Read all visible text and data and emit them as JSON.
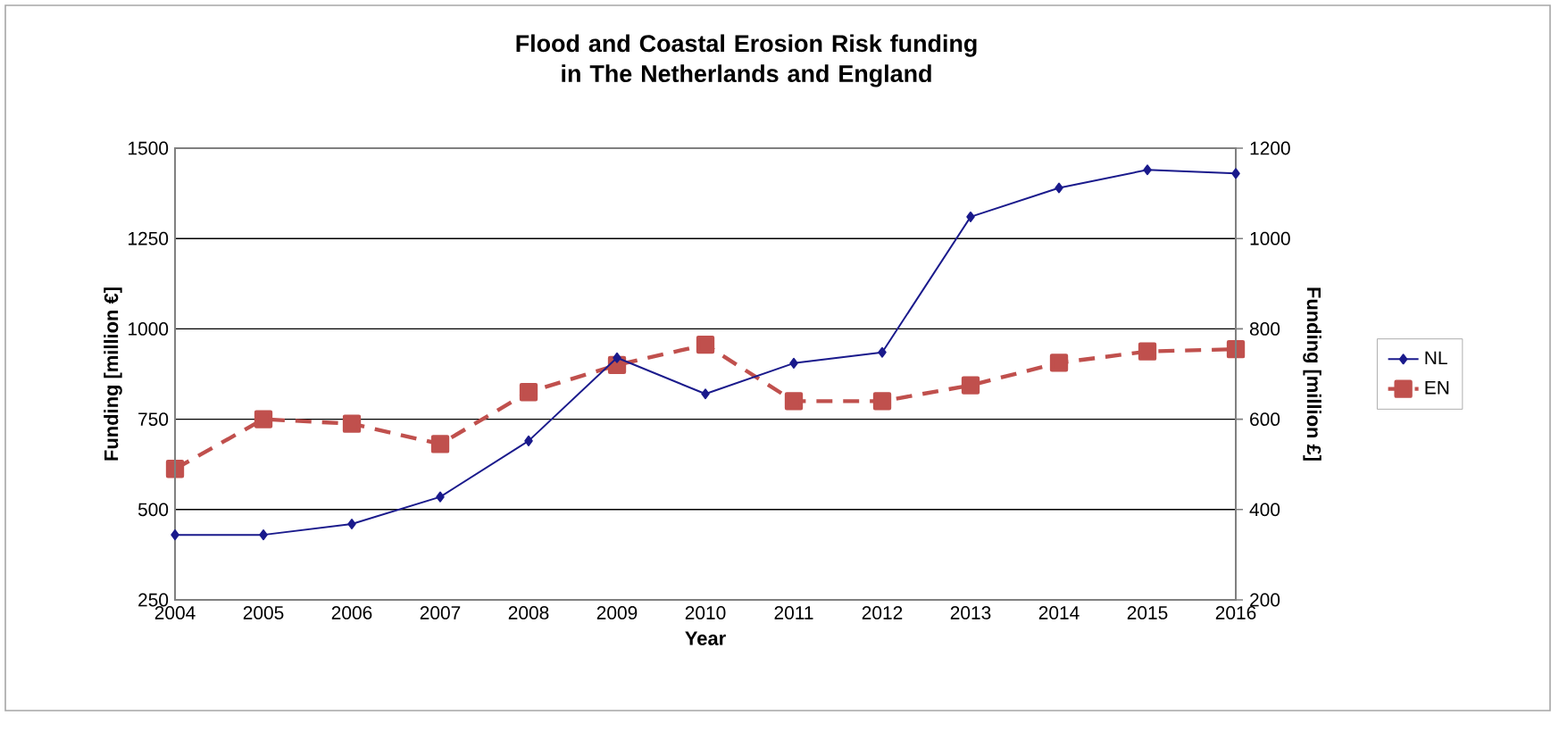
{
  "chart_data": {
    "type": "line",
    "title": "Flood and Coastal Erosion Risk funding in The Netherlands and England",
    "xlabel": "Year",
    "ylabel": "Funding [million €]",
    "y2label": "Funding [million £]",
    "categories": [
      "2004",
      "2005",
      "2006",
      "2007",
      "2008",
      "2009",
      "2010",
      "2011",
      "2012",
      "2013",
      "2014",
      "2015",
      "2016"
    ],
    "series": [
      {
        "name": "NL",
        "color": "#1a1a8c",
        "marker": "diamond",
        "line_style": "solid",
        "values": [
          430,
          430,
          460,
          535,
          690,
          920,
          820,
          905,
          935,
          1310,
          1390,
          1440,
          1430
        ]
      },
      {
        "name": "EN",
        "color": "#c0504d",
        "marker": "square",
        "line_style": "dashed",
        "axis": "y2",
        "values": [
          490,
          600,
          590,
          545,
          660,
          720,
          765,
          640,
          640,
          675,
          725,
          750,
          755
        ]
      }
    ],
    "ylim": [
      250,
      1500
    ],
    "yticks": [
      250,
      500,
      750,
      1000,
      1250,
      1500
    ],
    "y2lim": [
      200,
      1200
    ],
    "y2ticks": [
      200,
      400,
      600,
      800,
      1000,
      1200
    ],
    "grid": "y",
    "legend": "right"
  }
}
